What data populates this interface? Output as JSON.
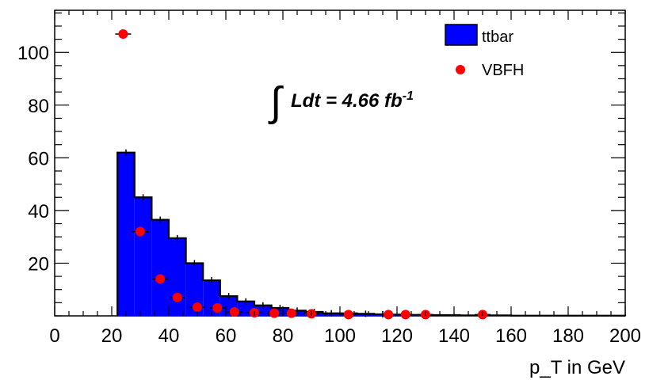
{
  "chart_data": {
    "type": "bar",
    "xlabel": "p_T in GeV",
    "ylabel": "",
    "xlim": [
      0,
      200
    ],
    "ylim": [
      0,
      116
    ],
    "x_ticks": [
      "0",
      "20",
      "40",
      "60",
      "80",
      "100",
      "120",
      "140",
      "160",
      "180",
      "200"
    ],
    "y_ticks": [
      "20",
      "40",
      "60",
      "80",
      "100"
    ],
    "annotation": {
      "integral": "∫",
      "text": "Ldt = 4.66 fb",
      "superscript": "-1"
    },
    "legend": {
      "position": "top-right"
    },
    "series": [
      {
        "name": "ttbar",
        "kind": "histogram",
        "color": "#0000ff",
        "bin_edges": [
          22,
          28,
          34,
          40,
          46,
          52,
          58,
          64,
          70,
          76,
          82,
          88,
          94,
          100,
          106,
          112,
          118,
          124,
          130,
          136,
          142,
          148,
          154,
          160,
          166,
          172,
          178,
          184,
          190,
          196,
          200
        ],
        "values": [
          62,
          45,
          36.5,
          29.5,
          20,
          13.5,
          7.5,
          5.5,
          4,
          3,
          2,
          1.5,
          1,
          1,
          0.8,
          0.6,
          0.5,
          0.4,
          0.3,
          0.3,
          0.2,
          0.2,
          0.2,
          0.1,
          0.1,
          0.1,
          0.1,
          0.1,
          0.1,
          0.1
        ]
      },
      {
        "name": "VBFH",
        "kind": "points",
        "color": "#ff0000",
        "x": [
          24,
          30,
          37,
          43,
          50,
          57,
          63,
          70,
          77,
          83,
          90,
          103,
          117,
          123,
          130,
          150
        ],
        "y": [
          107,
          32,
          14,
          7,
          3.3,
          3,
          1.5,
          1.2,
          1,
          1,
          0.8,
          0.5,
          0.5,
          0.5,
          0.5,
          0.5
        ]
      }
    ]
  }
}
